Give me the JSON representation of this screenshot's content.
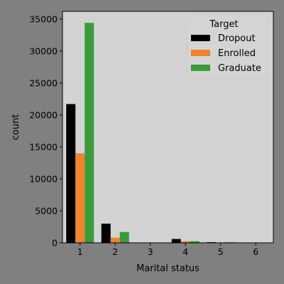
{
  "chart_data": {
    "type": "bar",
    "xlabel": "Marital status",
    "ylabel": "count",
    "categories": [
      "1",
      "2",
      "3",
      "4",
      "5",
      "6"
    ],
    "ylim": [
      0,
      36200
    ],
    "yticks": [
      0,
      5000,
      10000,
      15000,
      20000,
      25000,
      30000,
      35000
    ],
    "ytick_labels": [
      "0",
      "5000",
      "10000",
      "15000",
      "20000",
      "25000",
      "30000",
      "35000"
    ],
    "legend": {
      "title": "Target",
      "placement": "top-right"
    },
    "series": [
      {
        "name": "Dropout",
        "color": "#000000",
        "values": [
          21700,
          3000,
          0,
          600,
          100,
          0
        ]
      },
      {
        "name": "Enrolled",
        "color": "#f0832a",
        "values": [
          14000,
          800,
          0,
          250,
          30,
          0
        ]
      },
      {
        "name": "Graduate",
        "color": "#3a9b3a",
        "values": [
          34400,
          1700,
          0,
          250,
          100,
          0
        ]
      }
    ],
    "grid": false,
    "plot_background": "#d3d3d3",
    "figure_background": "#808080"
  }
}
